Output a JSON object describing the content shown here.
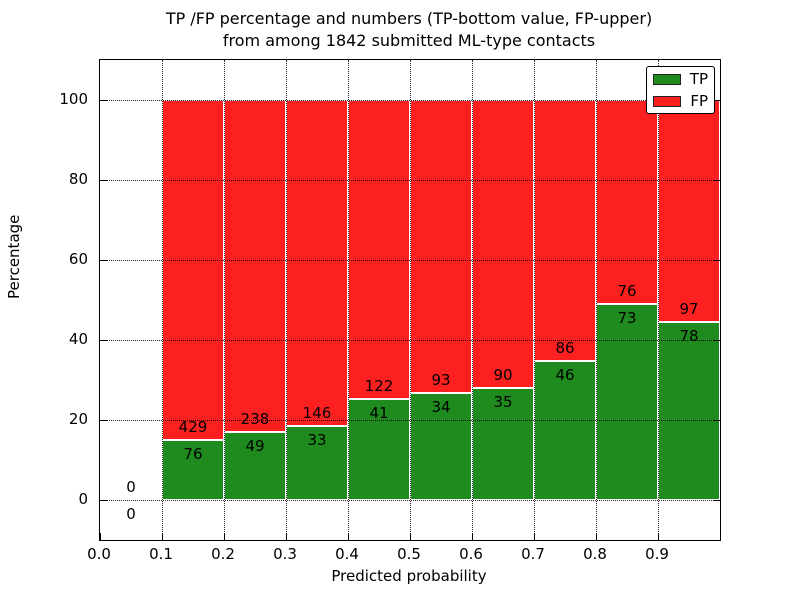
{
  "title": {
    "line1": "TP /FP percentage and numbers (TP-bottom value, FP-upper)",
    "line2": "from among 1842 submitted ML-type contacts"
  },
  "axes": {
    "xlabel": "Predicted probability",
    "ylabel": "Percentage",
    "xtick_labels": [
      "0.0",
      "0.1",
      "0.2",
      "0.3",
      "0.4",
      "0.5",
      "0.6",
      "0.7",
      "0.8",
      "0.9"
    ],
    "ytick_labels": [
      "0",
      "20",
      "40",
      "60",
      "80",
      "100"
    ]
  },
  "legend": {
    "items": [
      {
        "label": "TP",
        "color": "#1f8b1f"
      },
      {
        "label": "FP",
        "color": "#fd2020"
      }
    ]
  },
  "chart_data": {
    "type": "bar",
    "stacked": true,
    "title": "TP /FP percentage and numbers (TP-bottom value, FP-upper) from among 1842 submitted ML-type contacts",
    "xlabel": "Predicted probability",
    "ylabel": "Percentage",
    "total_contacts": 1842,
    "bin_start": [
      0.0,
      0.1,
      0.2,
      0.3,
      0.4,
      0.5,
      0.6,
      0.7,
      0.8,
      0.9
    ],
    "bin_width": 0.1,
    "xticks": [
      0.0,
      0.1,
      0.2,
      0.3,
      0.4,
      0.5,
      0.6,
      0.7,
      0.8,
      0.9
    ],
    "yticks": [
      0,
      20,
      40,
      60,
      80,
      100
    ],
    "xlim": [
      0.0,
      1.0
    ],
    "ylim": [
      -10,
      110
    ],
    "grid": true,
    "legend_position": "upper right",
    "series": [
      {
        "name": "TP",
        "color": "#1f8b1f",
        "counts": [
          0,
          76,
          49,
          33,
          41,
          34,
          35,
          46,
          73,
          78
        ],
        "percent": [
          0,
          15.05,
          17.07,
          18.44,
          25.15,
          26.77,
          28.0,
          34.85,
          48.99,
          44.57
        ]
      },
      {
        "name": "FP",
        "color": "#fd2020",
        "counts": [
          0,
          429,
          238,
          146,
          122,
          93,
          90,
          86,
          76,
          97
        ],
        "percent": [
          0,
          84.95,
          82.93,
          81.56,
          74.85,
          73.23,
          72.0,
          65.15,
          51.01,
          55.43
        ]
      }
    ]
  }
}
